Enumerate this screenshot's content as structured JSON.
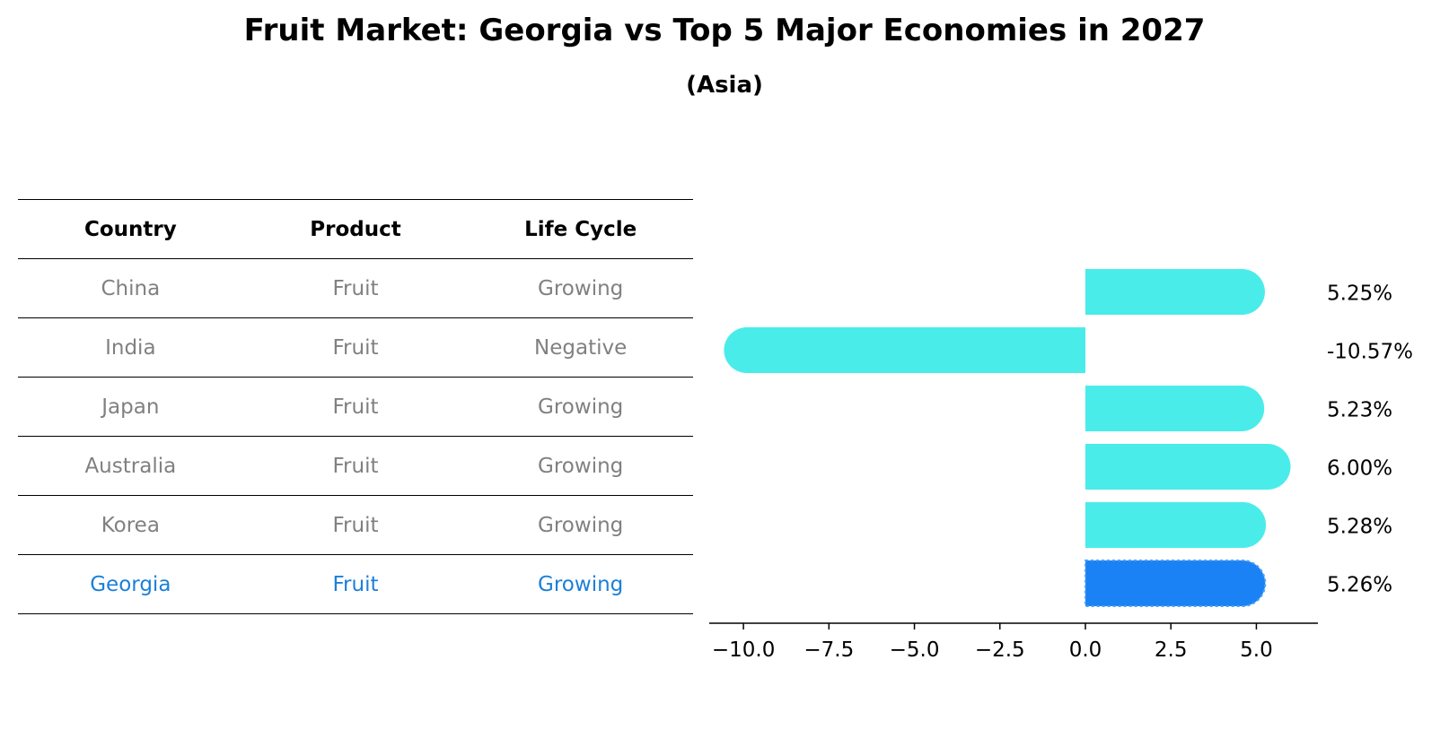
{
  "title": "Fruit Market: Georgia vs Top 5 Major Economies in 2027",
  "subtitle": "(Asia)",
  "table": {
    "headers": [
      "Country",
      "Product",
      "Life Cycle"
    ],
    "rows": [
      {
        "country": "China",
        "product": "Fruit",
        "life_cycle": "Growing"
      },
      {
        "country": "India",
        "product": "Fruit",
        "life_cycle": "Negative"
      },
      {
        "country": "Japan",
        "product": "Fruit",
        "life_cycle": "Growing"
      },
      {
        "country": "Australia",
        "product": "Fruit",
        "life_cycle": "Growing"
      },
      {
        "country": "Korea",
        "product": "Fruit",
        "life_cycle": "Growing"
      },
      {
        "country": "Georgia",
        "product": "Fruit",
        "life_cycle": "Growing"
      }
    ]
  },
  "chart_data": {
    "type": "bar",
    "orientation": "horizontal",
    "categories": [
      "China",
      "India",
      "Japan",
      "Australia",
      "Korea",
      "Georgia"
    ],
    "values": [
      5.25,
      -10.57,
      5.23,
      6.0,
      5.28,
      5.26
    ],
    "data_labels": [
      "5.25%",
      "-10.57%",
      "5.23%",
      "6.00%",
      "5.28%",
      "5.26%"
    ],
    "highlight": "Georgia",
    "xlim": [
      -11.0,
      6.8
    ],
    "xticks": [
      -10.0,
      -7.5,
      -5.0,
      -2.5,
      0.0,
      2.5,
      5.0
    ],
    "xtick_labels": [
      "−10.0",
      "−7.5",
      "−5.0",
      "−2.5",
      "0.0",
      "2.5",
      "5.0"
    ],
    "colors": {
      "bar": "#4aecea",
      "highlight": "#1a82f5",
      "axis": "#000000"
    }
  }
}
